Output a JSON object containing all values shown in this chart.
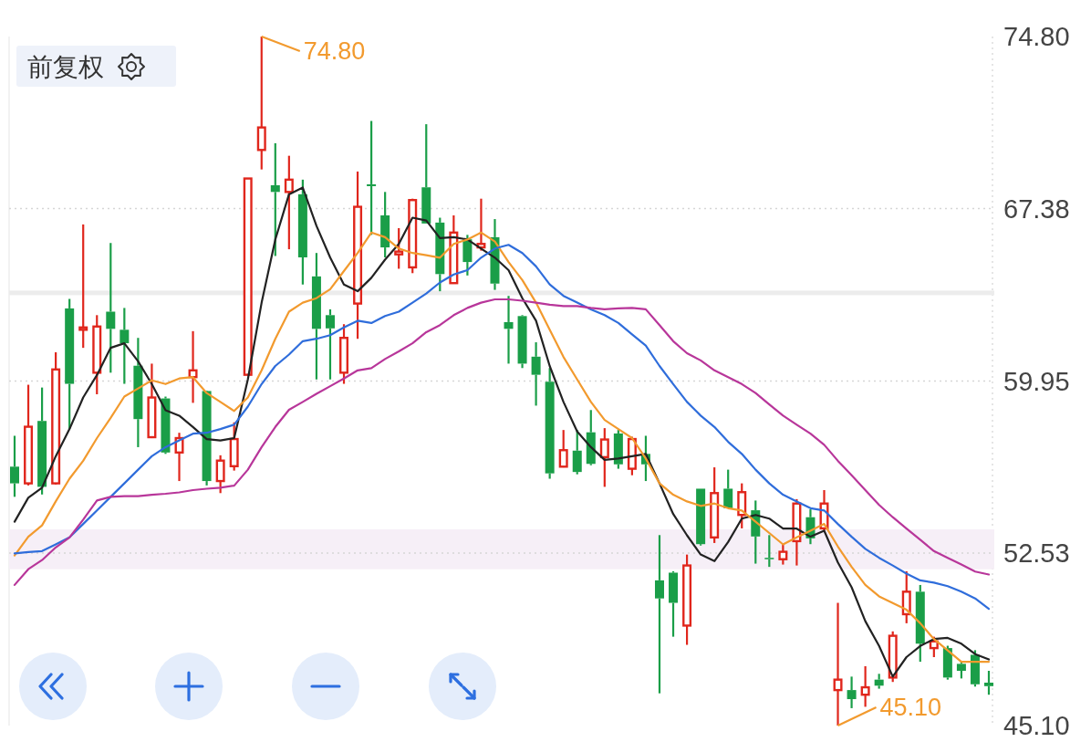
{
  "chart_data": {
    "type": "candlestick",
    "categories": [
      null,
      null,
      null,
      null,
      null,
      null,
      null,
      null,
      null,
      null,
      null,
      null,
      null,
      null,
      null,
      null,
      null,
      null,
      null,
      null,
      null,
      null,
      null,
      null,
      null,
      null,
      null,
      null,
      null,
      null,
      null,
      null,
      null,
      null,
      null,
      null,
      null,
      null,
      null,
      null,
      null,
      null,
      null,
      null,
      null,
      null,
      null,
      null,
      null,
      null,
      null,
      null,
      null,
      null,
      null,
      null,
      null,
      null,
      null,
      null,
      null,
      null,
      null,
      null,
      null,
      null,
      null,
      null,
      null,
      null,
      null,
      null
    ],
    "ohlc": [
      [
        56.26,
        57.59,
        54.96,
        55.54
      ],
      [
        55.54,
        59.79,
        55.45,
        57.98
      ],
      [
        58.23,
        59.67,
        55.06,
        55.39
      ],
      [
        55.54,
        61.19,
        55.49,
        60.45
      ],
      [
        63.08,
        63.49,
        57.88,
        59.83
      ],
      [
        62.16,
        66.7,
        61.38,
        62.26
      ],
      [
        60.31,
        62.79,
        59.38,
        62.3
      ],
      [
        62.94,
        65.9,
        60.31,
        62.2
      ],
      [
        62.16,
        63.1,
        59.83,
        61.58
      ],
      [
        60.61,
        61.81,
        57.1,
        58.31
      ],
      [
        57.53,
        60.7,
        57.49,
        59.24
      ],
      [
        59.2,
        59.28,
        56.81,
        56.87
      ],
      [
        56.87,
        57.72,
        55.64,
        57.49
      ],
      [
        60.12,
        62.1,
        59.01,
        60.41
      ],
      [
        59.52,
        59.54,
        55.45,
        55.64
      ],
      [
        55.64,
        56.75,
        55.12,
        56.52
      ],
      [
        56.28,
        58.17,
        56.09,
        57.45
      ],
      [
        60.22,
        68.68,
        60.22,
        68.68
      ],
      [
        69.91,
        74.8,
        69.07,
        70.88
      ],
      [
        68.39,
        70.2,
        65.34,
        68.1
      ],
      [
        68.1,
        69.66,
        65.63,
        68.63
      ],
      [
        68.0,
        68.63,
        64.11,
        65.28
      ],
      [
        64.46,
        65.47,
        60.02,
        62.2
      ],
      [
        62.79,
        63.04,
        60.02,
        62.22
      ],
      [
        60.31,
        62.4,
        59.83,
        61.81
      ],
      [
        63.29,
        68.98,
        61.77,
        67.46
      ],
      [
        68.43,
        71.16,
        66.25,
        68.35
      ],
      [
        67.09,
        68.1,
        65.28,
        65.71
      ],
      [
        65.41,
        66.54,
        64.79,
        65.53
      ],
      [
        64.85,
        67.81,
        64.6,
        67.75
      ],
      [
        68.3,
        71.02,
        66.74,
        66.74
      ],
      [
        66.78,
        66.99,
        63.82,
        64.56
      ],
      [
        64.17,
        67.09,
        64.17,
        66.35
      ],
      [
        66.06,
        66.25,
        64.5,
        65.08
      ],
      [
        65.71,
        67.81,
        65.57,
        65.86
      ],
      [
        66.15,
        66.93,
        63.88,
        64.15
      ],
      [
        62.49,
        63.62,
        60.7,
        62.2
      ],
      [
        62.75,
        62.79,
        60.51,
        60.7
      ],
      [
        61.0,
        61.62,
        58.89,
        60.22
      ],
      [
        59.92,
        60.51,
        55.74,
        55.97
      ],
      [
        56.26,
        57.84,
        56.23,
        56.97
      ],
      [
        56.95,
        57.84,
        55.93,
        56.03
      ],
      [
        57.74,
        58.7,
        56.32,
        56.38
      ],
      [
        56.67,
        57.92,
        55.39,
        57.43
      ],
      [
        57.69,
        57.84,
        56.17,
        56.36
      ],
      [
        56.17,
        57.55,
        55.89,
        57.45
      ],
      [
        56.81,
        57.59,
        55.64,
        56.36
      ],
      [
        51.36,
        53.31,
        46.49,
        50.58
      ],
      [
        51.69,
        51.75,
        48.93,
        50.39
      ],
      [
        49.41,
        52.47,
        48.58,
        52.0
      ],
      [
        55.31,
        55.31,
        52.86,
        52.92
      ],
      [
        53.21,
        56.23,
        52.97,
        55.12
      ],
      [
        55.31,
        56.13,
        54.47,
        54.47
      ],
      [
        54.18,
        55.54,
        53.6,
        55.16
      ],
      [
        54.38,
        54.8,
        52.08,
        53.25
      ],
      [
        52.33,
        53.31,
        51.94,
        52.27
      ],
      [
        52.27,
        52.92,
        52.04,
        52.59
      ],
      [
        53.05,
        54.86,
        52.0,
        54.67
      ],
      [
        54.08,
        54.42,
        52.92,
        53.17
      ],
      [
        53.6,
        55.25,
        53.5,
        54.67
      ],
      [
        46.63,
        50.39,
        45.1,
        47.08
      ],
      [
        46.63,
        47.21,
        45.85,
        46.24
      ],
      [
        46.43,
        47.66,
        45.91,
        46.75
      ],
      [
        47.08,
        47.33,
        46.69,
        46.82
      ],
      [
        47.17,
        49.16,
        46.98,
        48.97
      ],
      [
        49.9,
        51.75,
        49.51,
        50.87
      ],
      [
        50.87,
        51.16,
        47.85,
        48.63
      ],
      [
        48.44,
        48.93,
        48.05,
        48.73
      ],
      [
        48.44,
        48.54,
        47.08,
        47.17
      ],
      [
        47.76,
        47.85,
        47.13,
        47.46
      ],
      [
        48.15,
        48.35,
        46.78,
        46.88
      ],
      [
        46.95,
        47.46,
        46.43,
        46.8
      ]
    ],
    "series": [
      {
        "type": "line",
        "color": "#222222",
        "values": [
          53.89,
          54.92,
          55.35,
          56.71,
          57.88,
          59.24,
          60.21,
          61.38,
          61.58,
          60.8,
          59.82,
          58.69,
          58.46,
          57.97,
          57.45,
          57.39,
          57.49,
          60.02,
          63.33,
          66.05,
          68.0,
          68.29,
          66.64,
          65.27,
          64.11,
          63.82,
          64.4,
          65.18,
          65.86,
          66.99,
          66.87,
          66.11,
          66.15,
          66.05,
          65.66,
          65.27,
          64.73,
          63.52,
          62.55,
          60.6,
          59.05,
          57.78,
          57.1,
          56.55,
          56.61,
          56.71,
          56.81,
          55.54,
          54.22,
          53.3,
          52.47,
          52.19,
          53.01,
          54.02,
          54.18,
          54.02,
          53.59,
          53.59,
          53.24,
          53.5,
          52.13,
          51.06,
          49.6,
          48.53,
          47.21,
          48.05,
          48.53,
          48.83,
          48.88,
          48.63,
          48.18,
          47.95
        ]
      },
      {
        "type": "line",
        "color": "#f29a2e",
        "values": [
          52.43,
          53.24,
          53.73,
          54.76,
          55.74,
          56.51,
          57.49,
          58.36,
          59.28,
          59.63,
          59.98,
          59.82,
          60.06,
          60.12,
          59.43,
          59.05,
          58.66,
          59.24,
          60.41,
          61.77,
          62.94,
          63.33,
          63.52,
          63.91,
          64.69,
          65.47,
          66.35,
          66.15,
          65.66,
          65.47,
          65.37,
          65.27,
          65.86,
          66.05,
          66.35,
          65.96,
          65.08,
          64.3,
          63.33,
          62.16,
          60.99,
          60.02,
          59.05,
          58.27,
          57.88,
          57.49,
          56.61,
          55.54,
          55.05,
          54.76,
          54.57,
          54.67,
          54.47,
          54.37,
          53.89,
          53.4,
          52.91,
          53.21,
          53.5,
          53.79,
          52.82,
          51.94,
          51.16,
          50.67,
          50.38,
          50.09,
          49.51,
          48.83,
          48.34,
          47.85,
          47.85,
          47.85
        ]
      },
      {
        "type": "line",
        "color": "#2f6ddb",
        "values": [
          52.52,
          52.58,
          52.62,
          52.91,
          53.21,
          53.79,
          54.37,
          54.96,
          55.54,
          56.13,
          56.71,
          57.1,
          57.39,
          57.68,
          57.72,
          57.88,
          58.07,
          58.85,
          59.82,
          60.6,
          61.09,
          61.67,
          61.77,
          61.93,
          62.26,
          62.55,
          62.45,
          62.75,
          62.94,
          63.33,
          63.72,
          64.2,
          64.54,
          64.73,
          65.27,
          65.66,
          65.82,
          65.47,
          64.89,
          64.11,
          63.62,
          63.33,
          63.04,
          62.79,
          62.45,
          61.96,
          61.48,
          60.6,
          59.82,
          59.05,
          58.46,
          57.97,
          57.33,
          56.81,
          56.13,
          55.54,
          55.05,
          54.76,
          54.47,
          54.37,
          53.79,
          53.24,
          52.72,
          52.33,
          52.0,
          51.65,
          51.36,
          51.26,
          51.11,
          50.87,
          50.58,
          50.13
        ]
      },
      {
        "type": "line",
        "color": "#b8369a",
        "values": [
          51.16,
          51.84,
          52.23,
          52.78,
          53.21,
          53.98,
          54.8,
          54.96,
          54.99,
          54.99,
          55.05,
          55.09,
          55.15,
          55.25,
          55.31,
          55.35,
          55.44,
          56.13,
          57.1,
          57.97,
          58.71,
          59.05,
          59.4,
          59.73,
          60.06,
          60.41,
          60.51,
          60.9,
          61.23,
          61.58,
          62.06,
          62.36,
          62.79,
          63.1,
          63.33,
          63.47,
          63.47,
          63.41,
          63.33,
          63.24,
          63.18,
          63.18,
          63.1,
          63.04,
          63.08,
          63.1,
          63.04,
          62.36,
          61.67,
          61.15,
          60.84,
          60.41,
          60.12,
          59.82,
          59.43,
          58.94,
          58.46,
          58.07,
          57.68,
          57.2,
          56.51,
          55.89,
          55.25,
          54.61,
          54.08,
          53.59,
          53.11,
          52.62,
          52.33,
          52.04,
          51.74,
          51.61
        ]
      }
    ],
    "ylim": [
      45.1,
      74.8
    ],
    "yticks": [
      {
        "value": 45.1,
        "label": "45.10"
      },
      52.53,
      59.95,
      67.38,
      {
        "value": 74.8,
        "label": "74.80"
      }
    ],
    "grid": "y",
    "bands": [
      {
        "axis": "y",
        "from": 63.65,
        "to": 63.85,
        "color": "#ececec"
      },
      {
        "axis": "y",
        "from": 51.84,
        "to": 53.56,
        "color": "#f6eff7"
      }
    ],
    "annotations": [
      "前复权",
      "74.80",
      "45.10"
    ]
  }
}
